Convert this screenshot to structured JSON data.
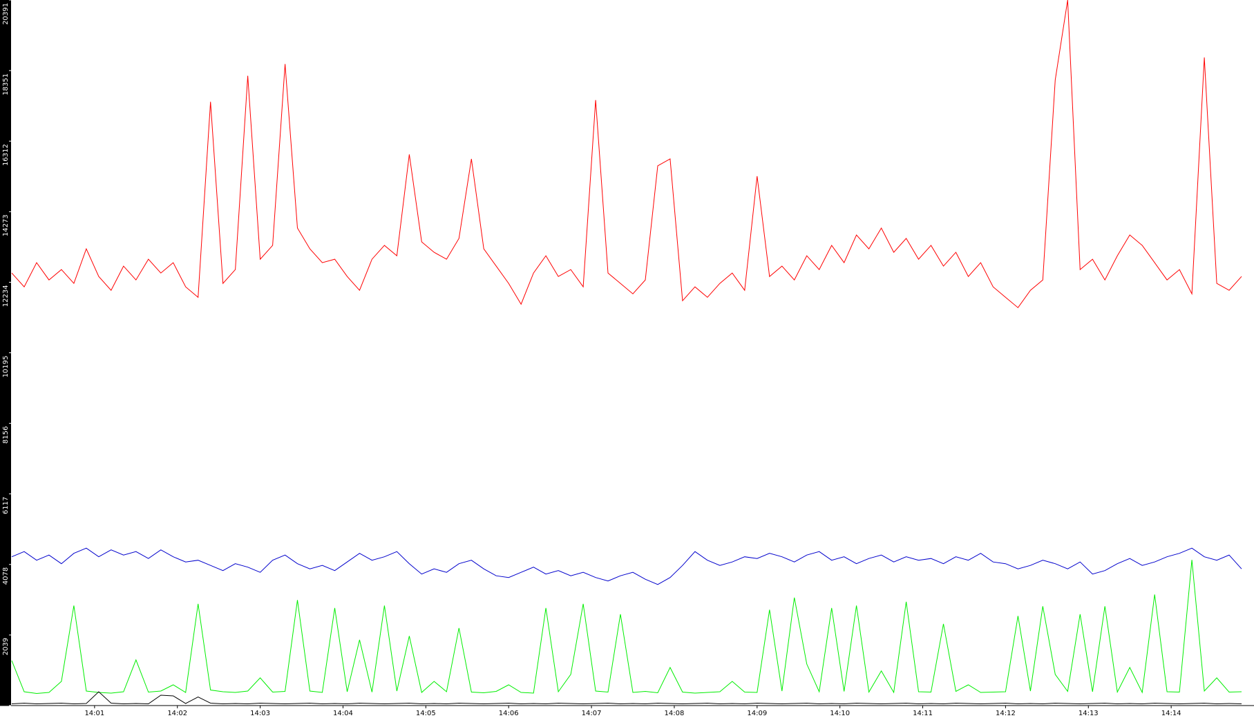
{
  "chart_data": {
    "type": "line",
    "x": [
      840,
      840.15,
      840.3,
      840.45,
      840.6,
      840.75,
      840.9,
      841.05,
      841.2,
      841.35,
      841.5,
      841.65,
      841.8,
      841.95,
      842.1,
      842.25,
      842.4,
      842.55,
      842.7,
      842.85,
      843,
      843.15,
      843.3,
      843.45,
      843.6,
      843.75,
      843.9,
      844.05,
      844.2,
      844.35,
      844.5,
      844.65,
      844.8,
      844.95,
      845.1,
      845.25,
      845.4,
      845.55,
      845.7,
      845.85,
      846,
      846.15,
      846.3,
      846.45,
      846.6,
      846.75,
      846.9,
      847.05,
      847.2,
      847.35,
      847.5,
      847.65,
      847.8,
      847.95,
      848.1,
      848.25,
      848.4,
      848.55,
      848.7,
      848.85,
      849,
      849.15,
      849.3,
      849.45,
      849.6,
      849.75,
      849.9,
      850.05,
      850.2,
      850.35,
      850.5,
      850.65,
      850.8,
      850.95,
      851.1,
      851.25,
      851.4,
      851.55,
      851.7,
      851.85,
      852,
      852.15,
      852.3,
      852.45,
      852.6,
      852.75,
      852.9,
      853.05,
      853.2,
      853.35,
      853.5,
      853.65,
      853.8,
      853.95,
      854.1,
      854.25,
      854.4,
      854.55,
      854.7,
      854.85
    ],
    "series": [
      {
        "color": "#ff0000",
        "values": [
          12500,
          12100,
          12800,
          12300,
          12600,
          12200,
          13200,
          12400,
          12000,
          12700,
          12300,
          12900,
          12500,
          12800,
          12100,
          11800,
          17450,
          12200,
          12600,
          18200,
          12900,
          13300,
          18540,
          13800,
          13200,
          12800,
          12900,
          12400,
          12000,
          12900,
          13300,
          13000,
          15930,
          13400,
          13100,
          12900,
          13500,
          15800,
          13200,
          12700,
          12200,
          11600,
          12500,
          13000,
          12400,
          12600,
          12100,
          17500,
          12500,
          12200,
          11900,
          12300,
          15600,
          15800,
          11700,
          12100,
          11800,
          12200,
          12500,
          12000,
          15300,
          12400,
          12700,
          12300,
          13000,
          12600,
          13300,
          12800,
          13600,
          13200,
          13800,
          13100,
          13500,
          12900,
          13300,
          12700,
          13100,
          12400,
          12800,
          12100,
          11800,
          11500,
          12000,
          12300,
          18080,
          20391,
          12600,
          12900,
          12300,
          13000,
          13600,
          13300,
          12800,
          12300,
          12600,
          11900,
          18730,
          12200,
          12000,
          12400
        ]
      },
      {
        "color": "#0000cc",
        "values": [
          4300,
          4450,
          4200,
          4350,
          4100,
          4400,
          4550,
          4300,
          4500,
          4350,
          4450,
          4250,
          4500,
          4300,
          4150,
          4200,
          4050,
          3900,
          4100,
          4000,
          3850,
          4200,
          4350,
          4100,
          3950,
          4050,
          3900,
          4150,
          4400,
          4200,
          4300,
          4450,
          4100,
          3800,
          3950,
          3850,
          4100,
          4200,
          3950,
          3750,
          3700,
          3850,
          4000,
          3800,
          3900,
          3750,
          3850,
          3700,
          3600,
          3750,
          3850,
          3650,
          3500,
          3700,
          4050,
          4450,
          4200,
          4050,
          4150,
          4300,
          4250,
          4400,
          4300,
          4150,
          4350,
          4450,
          4200,
          4300,
          4100,
          4250,
          4350,
          4150,
          4300,
          4200,
          4250,
          4100,
          4300,
          4200,
          4400,
          4150,
          4100,
          3950,
          4050,
          4200,
          4100,
          3950,
          4150,
          3800,
          3900,
          4100,
          4250,
          4050,
          4150,
          4300,
          4400,
          4550,
          4300,
          4200,
          4350,
          3950
        ]
      },
      {
        "color": "#00ee00",
        "values": [
          1300,
          400,
          350,
          380,
          700,
          2890,
          420,
          380,
          360,
          400,
          1320,
          390,
          420,
          600,
          380,
          2940,
          450,
          400,
          380,
          420,
          800,
          390,
          410,
          3050,
          420,
          380,
          2820,
          400,
          1900,
          390,
          2890,
          420,
          2010,
          380,
          700,
          400,
          2240,
          390,
          370,
          410,
          600,
          380,
          360,
          2820,
          400,
          900,
          2940,
          420,
          390,
          2640,
          380,
          410,
          370,
          1100,
          390,
          360,
          380,
          400,
          700,
          390,
          380,
          2770,
          420,
          3120,
          1200,
          400,
          2820,
          410,
          2890,
          390,
          1000,
          380,
          3000,
          400,
          390,
          2360,
          410,
          600,
          380,
          390,
          400,
          2590,
          420,
          2870,
          900,
          410,
          2640,
          400,
          2870,
          390,
          1100,
          380,
          3210,
          400,
          390,
          4210,
          420,
          800,
          390,
          400
        ]
      },
      {
        "color": "#000000",
        "values": [
          50,
          70,
          50,
          60,
          70,
          50,
          60,
          400,
          70,
          50,
          60,
          50,
          300,
          280,
          60,
          250,
          70,
          50,
          60,
          50,
          70,
          60,
          50,
          60,
          70,
          50,
          60,
          50,
          70,
          60,
          50,
          60,
          70,
          50,
          60,
          50,
          70,
          60,
          50,
          60,
          70,
          50,
          60,
          50,
          70,
          60,
          50,
          60,
          70,
          50,
          60,
          50,
          70,
          60,
          50,
          60,
          70,
          50,
          60,
          50,
          70,
          60,
          50,
          60,
          70,
          50,
          60,
          50,
          70,
          60,
          50,
          60,
          70,
          50,
          60,
          50,
          70,
          60,
          50,
          60,
          70,
          50,
          60,
          50,
          70,
          60,
          50,
          60,
          70,
          50,
          60,
          50,
          70,
          60,
          50,
          60,
          70,
          50,
          60,
          50
        ]
      }
    ],
    "xlim": [
      840,
      855
    ],
    "xticks": [
      {
        "value": 841,
        "label": "14:01"
      },
      {
        "value": 842,
        "label": "14:02"
      },
      {
        "value": 843,
        "label": "14:03"
      },
      {
        "value": 844,
        "label": "14:04"
      },
      {
        "value": 845,
        "label": "14:05"
      },
      {
        "value": 846,
        "label": "14:06"
      },
      {
        "value": 847,
        "label": "14:07"
      },
      {
        "value": 848,
        "label": "14:08"
      },
      {
        "value": 849,
        "label": "14:09"
      },
      {
        "value": 850,
        "label": "14:10"
      },
      {
        "value": 851,
        "label": "14:11"
      },
      {
        "value": 852,
        "label": "14:12"
      },
      {
        "value": 853,
        "label": "14:13"
      },
      {
        "value": 854,
        "label": "14:14"
      }
    ],
    "ylim": [
      0,
      20391
    ],
    "yticks": [
      0,
      2039,
      4078,
      6117,
      8156,
      10195,
      12234,
      14273,
      16312,
      18351,
      20391
    ]
  }
}
